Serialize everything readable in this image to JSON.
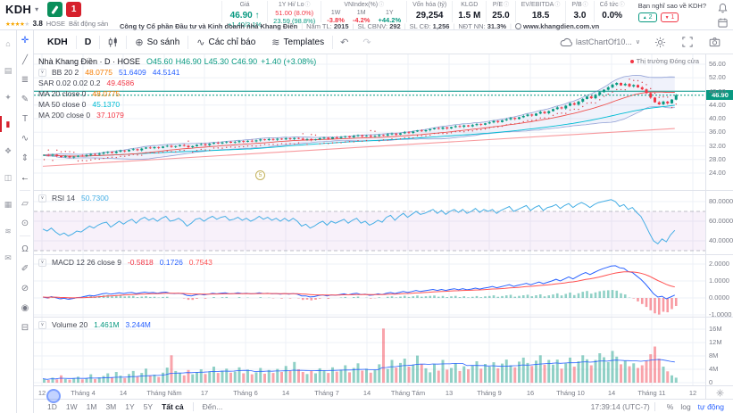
{
  "colors": {
    "green": "#089981",
    "red": "#f23645",
    "blue": "#2962ff",
    "cyan": "#00bcd4",
    "rsi_line": "#45aee5",
    "signal": "#ff5252",
    "gray": "#787b86",
    "grid": "#eef1f7",
    "bb_line": "#7186c9",
    "bb_fill": "rgba(90,110,210,0.09)",
    "ma200": "#f7999d",
    "teal_line": "#009688"
  },
  "header": {
    "symbol": "KDH",
    "logo_red_text": "1",
    "stars_full": "★★★★",
    "stars_empty": "★",
    "score": "3.8",
    "exchange": "HOSE",
    "industry": "Bất động sản",
    "stats": [
      {
        "label": "Giá",
        "rows": [
          {
            "t": "46.90 ↑",
            "c": "#089981",
            "big": true
          },
          {
            "t": "+1.40/3.1%",
            "c": "#089981"
          }
        ]
      },
      {
        "label": "1Y Hi/ Lo",
        "info": true,
        "rows": [
          {
            "t": "51.00 (8.0%)",
            "c": "#f23645"
          },
          {
            "t": "23.59 (98.8%)",
            "c": "#089981"
          }
        ]
      },
      {
        "label": "VNIndex(%)",
        "info": true,
        "cols": [
          {
            "k": "1W",
            "v": "-3.8%",
            "c": "#f23645"
          },
          {
            "k": "1M",
            "v": "-4.2%",
            "c": "#f23645"
          },
          {
            "k": "1Y",
            "v": "+44.2%",
            "c": "#089981"
          }
        ]
      },
      {
        "label": "Vốn hóa (tỷ)",
        "rows": [
          {
            "t": "29,254",
            "c": "#131722",
            "big": true
          }
        ]
      },
      {
        "label": "KLGD",
        "rows": [
          {
            "t": "1.5 M",
            "c": "#131722",
            "big": true
          }
        ]
      },
      {
        "label": "P/E",
        "info": true,
        "rows": [
          {
            "t": "25.0",
            "c": "#131722",
            "big": true
          }
        ]
      },
      {
        "label": "EV/EBITDA",
        "info": true,
        "rows": [
          {
            "t": "18.5",
            "c": "#131722",
            "big": true
          }
        ]
      },
      {
        "label": "P/B",
        "info": true,
        "rows": [
          {
            "t": "3.0",
            "c": "#131722",
            "big": true
          }
        ]
      },
      {
        "label": "Cổ tức",
        "info": true,
        "rows": [
          {
            "t": "0.0%",
            "c": "#131722",
            "big": true
          }
        ]
      }
    ],
    "sentiment": {
      "question": "Bạn nghĩ sao về KDH?",
      "up": "2",
      "down": "1"
    },
    "company_strip": [
      {
        "v": "Công ty Cổ phần Đầu tư và Kinh doanh nhà Khang Điền"
      },
      {
        "l": "Năm TL:",
        "v": "2015"
      },
      {
        "l": "SL CBNV:",
        "v": "292"
      },
      {
        "l": "SL CĐ:",
        "v": "1,256"
      },
      {
        "l": "NĐT NN:",
        "v": "31.3%"
      },
      {
        "v": "www.khangdien.com.vn",
        "globe": true
      }
    ]
  },
  "toolbar": {
    "symbol": "KDH",
    "interval": "D",
    "compare": "So sánh",
    "indicators": "Các chỉ báo",
    "templates": "Templates",
    "saved_chart": "lastChartOf10..."
  },
  "rails": {
    "app": [
      {
        "name": "home-icon",
        "g": "⌂"
      },
      {
        "name": "markets-icon",
        "g": "▤"
      },
      {
        "name": "ideas-icon",
        "g": "✦"
      },
      {
        "name": "chart-icon",
        "g": "▮",
        "active": true
      },
      {
        "name": "portfolio-icon",
        "g": "❖"
      },
      {
        "name": "screener-icon",
        "g": "◫"
      },
      {
        "name": "heatmap-icon",
        "g": "▦"
      },
      {
        "name": "news-icon",
        "g": "≋"
      },
      {
        "name": "messages-icon",
        "g": "✉"
      }
    ],
    "draw": [
      {
        "name": "crosshair-tool-icon",
        "g": "✛",
        "c": "#2962ff"
      },
      {
        "name": "trendline-tool-icon",
        "g": "╱"
      },
      {
        "name": "fib-tool-icon",
        "g": "≣"
      },
      {
        "name": "brush-tool-icon",
        "g": "✎"
      },
      {
        "name": "text-tool-icon",
        "g": "T"
      },
      {
        "name": "pattern-tool-icon",
        "g": "∿"
      },
      {
        "name": "position-tool-icon",
        "g": "⇕"
      },
      {
        "name": "arrow-tool-icon",
        "g": "←",
        "c": "#131722"
      },
      {
        "div": true
      },
      {
        "name": "ruler-tool-icon",
        "g": "▱"
      },
      {
        "name": "zoom-tool-icon",
        "g": "⊙"
      },
      {
        "div": true
      },
      {
        "name": "magnet-tool-icon",
        "g": "Ω"
      },
      {
        "name": "draw-tool-icon",
        "g": "✐"
      },
      {
        "name": "lock-tool-icon",
        "g": "⊘"
      },
      {
        "name": "eye-tool-icon",
        "g": "◉"
      },
      {
        "name": "trash-tool-icon",
        "g": "⊟"
      }
    ]
  },
  "legends": {
    "main_title": "Nhà Khang Điền · D · HOSE",
    "ohlc": [
      "O45.60",
      "H46.90",
      "L45.30",
      "C46.90"
    ],
    "change": "+1.40 (+3.08%)",
    "rows": [
      {
        "name": "BB 20 2",
        "caret": true,
        "vals": [
          {
            "t": "48.0775",
            "c": "#f57c00"
          },
          {
            "t": "51.6409",
            "c": "#2962ff"
          },
          {
            "t": "44.5141",
            "c": "#2962ff"
          }
        ]
      },
      {
        "name": "SAR 0.02 0.02 0.2",
        "vals": [
          {
            "t": "49.4586",
            "c": "#f23645"
          }
        ]
      },
      {
        "name": "MA 20 close 0",
        "vals": [
          {
            "t": "48.0775",
            "c": "#f57c00"
          }
        ]
      },
      {
        "name": "MA 50 close 0",
        "vals": [
          {
            "t": "45.1370",
            "c": "#00bcd4"
          }
        ]
      },
      {
        "name": "MA 200 close 0",
        "vals": [
          {
            "t": "37.1079",
            "c": "#f23645"
          }
        ]
      }
    ],
    "rsi": {
      "name": "RSI 14",
      "caret": true,
      "vals": [
        {
          "t": "50.7300",
          "c": "#45aee5"
        }
      ]
    },
    "macd": {
      "name": "MACD 12 26 close 9",
      "caret": true,
      "vals": [
        {
          "t": "-0.5818",
          "c": "#f23645"
        },
        {
          "t": "0.1726",
          "c": "#2962ff"
        },
        {
          "t": "0.7543",
          "c": "#ff5252"
        }
      ]
    },
    "volume": {
      "name": "Volume 20",
      "caret": true,
      "vals": [
        {
          "t": "1.461M",
          "c": "#089981"
        },
        {
          "t": "3.244M",
          "c": "#2962ff"
        }
      ]
    }
  },
  "market_status": "Thị trường Đóng cửa",
  "price_badge": "46.90",
  "event_marker": "5",
  "bottom_bar": {
    "ranges": [
      "1D",
      "1W",
      "1M",
      "3M",
      "1Y",
      "5Y"
    ],
    "all": "Tất cả",
    "goto": "Đến...",
    "clock": "17:39:14 (UTC-7)",
    "percent": "%",
    "log": "log",
    "auto": "tự động"
  },
  "chart_data": {
    "type": "candlestick",
    "title": "Nhà Khang Điền (KDH) · D · HOSE",
    "last": {
      "open": 45.6,
      "high": 46.9,
      "low": 45.3,
      "close": 46.9,
      "change_pct": "+3.08%"
    },
    "price_ticks": [
      56,
      52,
      48,
      44,
      40,
      36,
      32,
      28,
      24
    ],
    "time_axis": [
      [
        "12",
        9
      ],
      [
        "Tháng 4",
        55
      ],
      [
        "14",
        100
      ],
      [
        "Tháng Năm",
        146
      ],
      [
        "17",
        191
      ],
      [
        "Tháng 6",
        237
      ],
      [
        "14",
        282
      ],
      [
        "Tháng 7",
        328
      ],
      [
        "14",
        373
      ],
      [
        "Tháng Tám",
        419
      ],
      [
        "13",
        465
      ],
      [
        "Tháng 9",
        510
      ],
      [
        "16",
        556
      ],
      [
        "Tháng 10",
        601
      ],
      [
        "14",
        647
      ],
      [
        "Tháng 11",
        692
      ],
      [
        "12",
        738
      ]
    ],
    "closes": [
      29.3,
      29.1,
      29.4,
      29.0,
      28.7,
      28.9,
      28.6,
      28.8,
      29.1,
      29.0,
      29.3,
      29.6,
      29.4,
      29.7,
      30.0,
      30.2,
      29.9,
      30.3,
      30.6,
      30.4,
      30.8,
      31.0,
      30.7,
      31.2,
      31.5,
      31.3,
      31.6,
      31.4,
      31.8,
      32.0,
      31.7,
      31.9,
      32.2,
      32.0,
      31.6,
      31.9,
      32.3,
      32.5,
      32.2,
      32.6,
      32.9,
      32.7,
      33.0,
      33.2,
      32.9,
      33.1,
      33.4,
      33.2,
      33.5,
      33.3,
      33.6,
      33.9,
      33.7,
      34.0,
      33.8,
      34.1,
      33.9,
      34.2,
      34.0,
      34.3,
      34.1,
      33.8,
      34.0,
      33.7,
      33.9,
      34.2,
      34.4,
      34.1,
      34.5,
      34.3,
      34.6,
      34.8,
      34.5,
      34.9,
      35.1,
      34.8,
      35.0,
      34.7,
      34.9,
      35.2,
      35.0,
      35.4,
      35.6,
      35.3,
      35.7,
      36.0,
      35.8,
      36.2,
      36.5,
      36.3,
      36.6,
      36.9,
      37.2,
      37.0,
      37.4,
      37.1,
      37.5,
      37.8,
      37.6,
      38.0,
      37.7,
      38.1,
      38.4,
      38.2,
      38.6,
      38.9,
      39.3,
      39.0,
      39.5,
      39.8,
      40.2,
      39.9,
      40.4,
      40.8,
      41.2,
      40.9,
      41.5,
      42.0,
      41.6,
      42.2,
      42.8,
      43.3,
      43.0,
      43.8,
      44.5,
      44.1,
      45.0,
      45.8,
      46.5,
      46.0,
      47.0,
      47.8,
      48.5,
      49.2,
      50.0,
      50.5,
      49.8,
      50.2,
      49.5,
      49.9,
      49.2,
      48.6,
      47.5,
      46.2,
      44.8,
      44.2,
      45.0,
      44.5,
      45.6,
      46.9
    ],
    "volumes_M": [
      1.2,
      0.8,
      1.5,
      1.0,
      2.2,
      1.1,
      0.9,
      1.4,
      1.8,
      1.0,
      1.3,
      2.5,
      1.1,
      1.6,
      2.0,
      2.8,
      1.5,
      3.2,
      2.1,
      1.4,
      2.6,
      3.5,
      1.8,
      2.9,
      4.2,
      2.0,
      2.4,
      1.7,
      3.0,
      4.5,
      8.2,
      3.5,
      2.8,
      2.2,
      3.8,
      2.5,
      3.2,
      4.0,
      2.6,
      3.4,
      4.8,
      2.9,
      3.6,
      4.2,
      3.0,
      3.3,
      4.6,
      2.8,
      3.9,
      2.5,
      3.1,
      4.4,
      2.7,
      3.8,
      2.9,
      4.1,
      3.2,
      5.0,
      3.5,
      6.2,
      4.0,
      3.2,
      2.6,
      3.5,
      2.8,
      4.3,
      3.7,
      2.9,
      4.6,
      3.3,
      3.9,
      5.2,
      3.1,
      4.4,
      5.8,
      3.6,
      4.2,
      3.0,
      3.8,
      5.5,
      16.2,
      4.1,
      6.8,
      4.5,
      5.9,
      7.2,
      4.8,
      5.4,
      8.1,
      5.6,
      4.3,
      3.1,
      5.5,
      3.6,
      6.8,
      3.9,
      4.4,
      5.8,
      3.5,
      4.9,
      4.0,
      5.1,
      6.4,
      4.2,
      5.6,
      4.8,
      6.1,
      4.3,
      5.7,
      6.9,
      5.2,
      4.6,
      6.3,
      7.5,
      5.9,
      5.0,
      6.6,
      8.2,
      5.4,
      6.8,
      5.4,
      6.9,
      4.2,
      5.8,
      7.5,
      4.8,
      6.4,
      8.2,
      7.0,
      5.2,
      6.8,
      8.8,
      7.6,
      6.2,
      9.5,
      7.8,
      5.5,
      6.6,
      4.9,
      5.8,
      4.4,
      5.2,
      6.5,
      8.5,
      10.8,
      7.2,
      4.8,
      3.4,
      2.2,
      1.5
    ],
    "volume_ticks_M": [
      16,
      12,
      8,
      4,
      0
    ],
    "rsi": {
      "period": 14,
      "last": 50.73,
      "ticks": [
        80,
        60,
        40
      ],
      "bands": [
        70,
        30
      ],
      "values": [
        52,
        50,
        53,
        49,
        46,
        48,
        45,
        47,
        50,
        49,
        52,
        55,
        53,
        56,
        58,
        59,
        54,
        57,
        60,
        57,
        60,
        62,
        58,
        62,
        64,
        61,
        63,
        60,
        63,
        65,
        60,
        61,
        63,
        60,
        55,
        58,
        62,
        63,
        60,
        63,
        65,
        62,
        64,
        65,
        61,
        62,
        64,
        61,
        63,
        60,
        62,
        65,
        62,
        64,
        61,
        63,
        60,
        63,
        60,
        63,
        60,
        55,
        57,
        53,
        55,
        58,
        60,
        56,
        60,
        58,
        60,
        62,
        58,
        61,
        63,
        58,
        60,
        56,
        58,
        61,
        59,
        64,
        66,
        61,
        65,
        68,
        64,
        67,
        70,
        67,
        68,
        70,
        72,
        68,
        71,
        67,
        70,
        72,
        69,
        72,
        68,
        70,
        73,
        69,
        72,
        70,
        72,
        68,
        71,
        73,
        75,
        70,
        72,
        74,
        76,
        71,
        74,
        76,
        71,
        74,
        75,
        77,
        73,
        76,
        78,
        74,
        77,
        79,
        77,
        74,
        77,
        79,
        80,
        81,
        82,
        80,
        75,
        77,
        72,
        74,
        69,
        65,
        57,
        48,
        40,
        37,
        42,
        39,
        46,
        50.73
      ]
    },
    "macd": {
      "fast": 12,
      "slow": 26,
      "signal_period": 9,
      "last_hist": -0.5818,
      "last_macd": 0.1726,
      "last_signal": 0.7543,
      "ticks": [
        2,
        1,
        0,
        -1
      ],
      "values": [
        0.05,
        0.0,
        0.08,
        0.02,
        -0.05,
        -0.02,
        -0.08,
        -0.04,
        0.02,
        0.04,
        0.1,
        0.15,
        0.12,
        0.18,
        0.24,
        0.28,
        0.22,
        0.26,
        0.3,
        0.26,
        0.3,
        0.32,
        0.26,
        0.3,
        0.34,
        0.3,
        0.32,
        0.28,
        0.32,
        0.34,
        0.28,
        0.26,
        0.28,
        0.24,
        0.14,
        0.12,
        0.18,
        0.22,
        0.18,
        0.22,
        0.28,
        0.24,
        0.28,
        0.3,
        0.24,
        0.26,
        0.3,
        0.26,
        0.28,
        0.24,
        0.26,
        0.3,
        0.26,
        0.28,
        0.24,
        0.26,
        0.22,
        0.26,
        0.22,
        0.26,
        0.22,
        0.12,
        0.12,
        0.06,
        0.08,
        0.14,
        0.18,
        0.12,
        0.18,
        0.16,
        0.2,
        0.24,
        0.18,
        0.24,
        0.28,
        0.2,
        0.22,
        0.16,
        0.18,
        0.24,
        0.2,
        0.28,
        0.32,
        0.26,
        0.32,
        0.38,
        0.32,
        0.38,
        0.44,
        0.38,
        0.42,
        0.46,
        0.5,
        0.44,
        0.5,
        0.44,
        0.5,
        0.54,
        0.48,
        0.54,
        0.48,
        0.52,
        0.58,
        0.52,
        0.58,
        0.62,
        0.68,
        0.6,
        0.66,
        0.72,
        0.78,
        0.68,
        0.74,
        0.8,
        0.86,
        0.78,
        0.86,
        0.94,
        0.84,
        0.92,
        1.0,
        1.1,
        1.0,
        1.12,
        1.24,
        1.12,
        1.26,
        1.4,
        1.5,
        1.38,
        1.5,
        1.62,
        1.72,
        1.8,
        1.88,
        1.9,
        1.78,
        1.74,
        1.56,
        1.5,
        1.3,
        1.1,
        0.85,
        0.55,
        0.25,
        0.05,
        0.1,
        -0.05,
        0.05,
        0.17
      ]
    },
    "overlays": {
      "bb": "20 2",
      "sar": "0.02 0.02 0.2",
      "ma_periods": [
        20,
        50,
        200
      ],
      "ma200_line": {
        "start": 26.0,
        "end": 37.1
      },
      "horizontal_line": 48.08,
      "current_price": 46.9
    }
  }
}
